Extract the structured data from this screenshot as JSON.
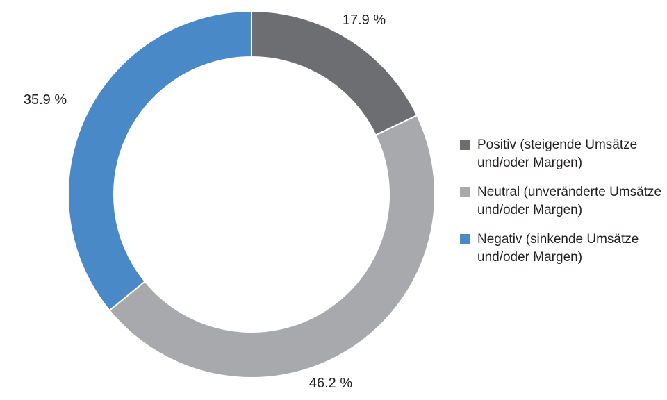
{
  "chart_data": {
    "type": "pie",
    "donut": true,
    "start": "top",
    "direction": "clockwise",
    "series": [
      {
        "name": "Positiv (steigende Umsätze und/oder Margen)",
        "value": 17.9,
        "label": "17.9 %",
        "color": "#6d6e71"
      },
      {
        "name": "Neutral (unveränderte Umsätze und/oder Margen)",
        "value": 46.2,
        "label": "46.2 %",
        "color": "#a7a9ac"
      },
      {
        "name": "Negativ (sinkende Umsätze und/oder Margen)",
        "value": 35.9,
        "label": "35.9 %",
        "color": "#4a89c8"
      }
    ],
    "legend_position": "right"
  }
}
